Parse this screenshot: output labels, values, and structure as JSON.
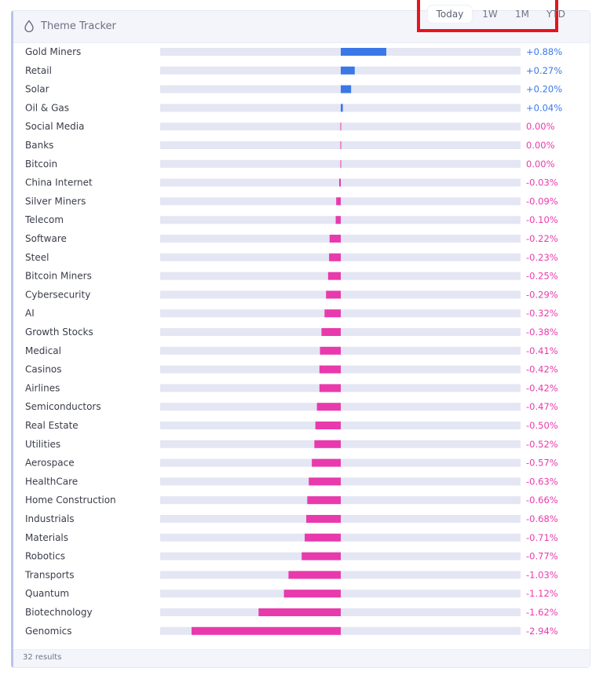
{
  "header": {
    "title": "Theme Tracker",
    "icon": "drop-icon",
    "tabs": [
      "Today",
      "1W",
      "1M",
      "YTD"
    ],
    "active_tab": "Today"
  },
  "footer": {
    "results": "32 results"
  },
  "colors": {
    "positive": "#3b78e7",
    "negative": "#e83aac",
    "track": "#e4e6f3",
    "highlight": "#e8131b"
  },
  "chart_data": {
    "type": "bar",
    "orientation": "horizontal",
    "title": "Theme Tracker",
    "unit": "%",
    "xlim": [
      -2.94,
      0.88
    ],
    "categories": [
      "Gold Miners",
      "Retail",
      "Solar",
      "Oil & Gas",
      "Social Media",
      "Banks",
      "Bitcoin",
      "China Internet",
      "Silver Miners",
      "Telecom",
      "Software",
      "Steel",
      "Bitcoin Miners",
      "Cybersecurity",
      "AI",
      "Growth Stocks",
      "Medical",
      "Casinos",
      "Airlines",
      "Semiconductors",
      "Real Estate",
      "Utilities",
      "Aerospace",
      "HealthCare",
      "Home Construction",
      "Industrials",
      "Materials",
      "Robotics",
      "Transports",
      "Quantum",
      "Biotechnology",
      "Genomics"
    ],
    "values": [
      0.88,
      0.27,
      0.2,
      0.04,
      0.0,
      0.0,
      0.0,
      -0.03,
      -0.09,
      -0.1,
      -0.22,
      -0.23,
      -0.25,
      -0.29,
      -0.32,
      -0.38,
      -0.41,
      -0.42,
      -0.42,
      -0.47,
      -0.5,
      -0.52,
      -0.57,
      -0.63,
      -0.66,
      -0.68,
      -0.71,
      -0.77,
      -1.03,
      -1.12,
      -1.62,
      -2.94
    ],
    "labels": [
      "+0.88%",
      "+0.27%",
      "+0.20%",
      "+0.04%",
      "0.00%",
      "0.00%",
      "0.00%",
      "-0.03%",
      "-0.09%",
      "-0.10%",
      "-0.22%",
      "-0.23%",
      "-0.25%",
      "-0.29%",
      "-0.32%",
      "-0.38%",
      "-0.41%",
      "-0.42%",
      "-0.42%",
      "-0.47%",
      "-0.50%",
      "-0.52%",
      "-0.57%",
      "-0.63%",
      "-0.66%",
      "-0.68%",
      "-0.71%",
      "-0.77%",
      "-1.03%",
      "-1.12%",
      "-1.62%",
      "-2.94%"
    ]
  }
}
